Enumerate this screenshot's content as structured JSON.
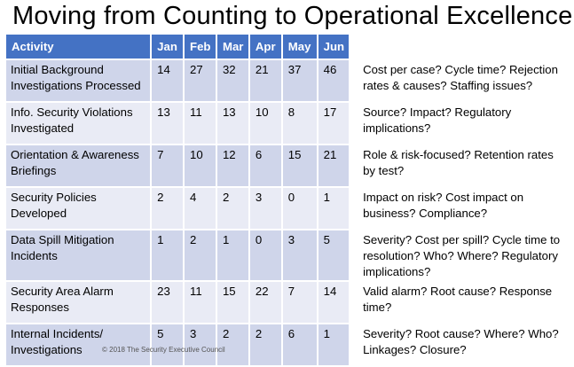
{
  "title": "Moving from Counting to Operational Excellence",
  "table": {
    "columns": [
      "Activity",
      "Jan",
      "Feb",
      "Mar",
      "Apr",
      "May",
      "Jun"
    ],
    "rows": [
      {
        "activity": [
          "Initial Background",
          "Investigations Processed"
        ],
        "values": [
          "14",
          "27",
          "32",
          "21",
          "37",
          "46"
        ],
        "note": [
          "Cost per case? Cycle time? Rejection",
          "rates & causes? Staffing issues?"
        ]
      },
      {
        "activity": [
          "Info. Security Violations",
          "Investigated"
        ],
        "values": [
          "13",
          "11",
          "13",
          "10",
          "8",
          "17"
        ],
        "note": [
          "Source? Impact? Regulatory",
          "implications?"
        ]
      },
      {
        "activity": [
          "Orientation & Awareness",
          "Briefings"
        ],
        "values": [
          "7",
          "10",
          "12",
          "6",
          "15",
          "21"
        ],
        "note": [
          "Role & risk-focused? Retention rates",
          "by test?"
        ]
      },
      {
        "activity": [
          "Security Policies",
          "Developed"
        ],
        "values": [
          "2",
          "4",
          "2",
          "3",
          "0",
          "1"
        ],
        "note": [
          "Impact on risk? Cost impact on",
          "business? Compliance?"
        ]
      },
      {
        "activity": [
          "Data Spill Mitigation",
          "Incidents"
        ],
        "values": [
          "1",
          "2",
          "1",
          "0",
          "3",
          "5"
        ],
        "note": [
          "Severity? Cost per spill? Cycle time to",
          "resolution? Who? Where? Regulatory",
          "implications?"
        ]
      },
      {
        "activity": [
          "Security Area Alarm",
          "Responses"
        ],
        "values": [
          "23",
          "11",
          "15",
          "22",
          "7",
          "14"
        ],
        "note": [
          "Valid alarm? Root cause? Response",
          "time?"
        ]
      },
      {
        "activity": [
          "Internal Incidents/",
          "Investigations"
        ],
        "values": [
          "5",
          "3",
          "2",
          "2",
          "6",
          "1"
        ],
        "note": [
          "Severity? Root cause? Where? Who?",
          "Linkages? Closure?"
        ]
      }
    ]
  },
  "footer": "© 2018 The Security Executive Council",
  "colors": {
    "header": "#4472c4",
    "row_dark": "#cfd5ea",
    "row_light": "#e9ebf5"
  }
}
